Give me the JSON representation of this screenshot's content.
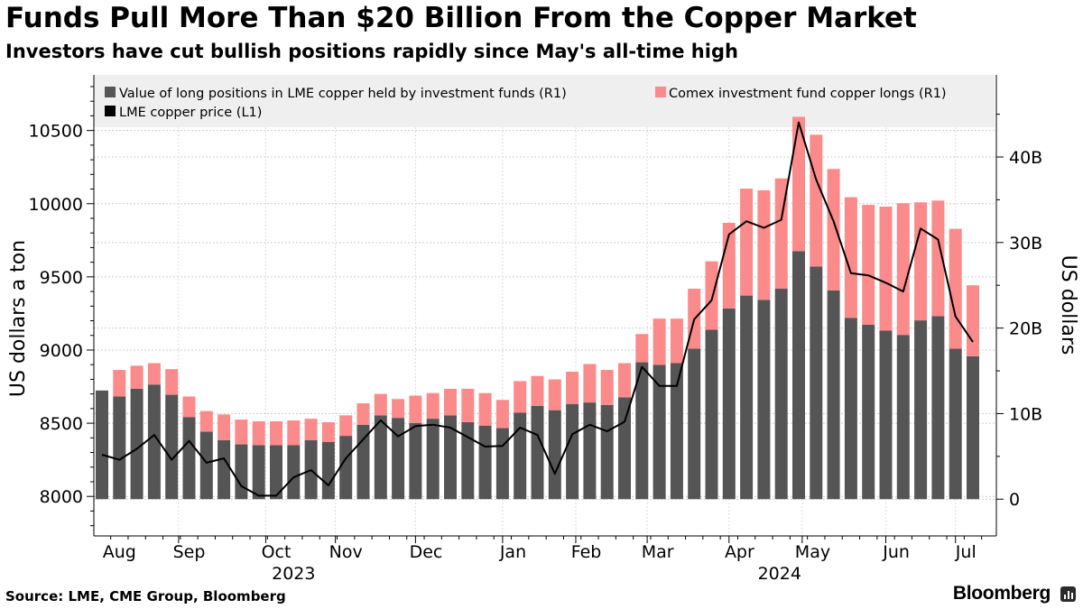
{
  "header": {
    "title": "Funds Pull More Than $20 Billion From the Copper Market",
    "subtitle": "Investors have cut bullish positions rapidly since May's all-time high"
  },
  "footer": {
    "source": "Source: LME, CME Group, Bloomberg",
    "brand": "Bloomberg"
  },
  "colors": {
    "lme_bar": "#555555",
    "comex_bar": "#fb8a8a",
    "price_line": "#000000",
    "legend_bg": "#efefef",
    "grid": "#cccccc"
  },
  "chart_data": {
    "type": "bar",
    "title": "Funds Pull More Than $20 Billion From the Copper Market",
    "ylabel_left": "US dollars a ton",
    "ylabel_right": "US dollars",
    "left_axis": {
      "min": 7730,
      "max": 10880,
      "ticks": [
        8000,
        8500,
        9000,
        9500,
        10000,
        10500
      ],
      "tick_labels": [
        "8000",
        "8500",
        "9000",
        "9500",
        "10000",
        "10500"
      ]
    },
    "right_axis": {
      "min": -4.3,
      "max": 49.6,
      "ticks": [
        0,
        10,
        20,
        30,
        40
      ],
      "tick_labels": [
        "0",
        "10B",
        "20B",
        "30B",
        "40B"
      ]
    },
    "legend": [
      {
        "key": "lme",
        "label": "Value of long positions in LME copper held by investment funds  (R1)"
      },
      {
        "key": "comex",
        "label": "Comex investment fund copper longs (R1)"
      },
      {
        "key": "price",
        "label": "LME copper price (L1)"
      }
    ],
    "x_labels": [
      {
        "label": "Aug",
        "week": 1
      },
      {
        "label": "Sep",
        "week": 5
      },
      {
        "label": "Oct",
        "week": 10
      },
      {
        "label": "Nov",
        "week": 14
      },
      {
        "label": "Dec",
        "week": 18.6
      },
      {
        "label": "Jan",
        "week": 23.6
      },
      {
        "label": "Feb",
        "week": 27.8
      },
      {
        "label": "Mar",
        "week": 31.9
      },
      {
        "label": "Apr",
        "week": 36.6
      },
      {
        "label": "May",
        "week": 40.8
      },
      {
        "label": "Jun",
        "week": 45.6
      },
      {
        "label": "Jul",
        "week": 49.6
      }
    ],
    "year_labels": [
      {
        "label": "2023",
        "week": 11
      },
      {
        "label": "2024",
        "week": 38.9
      }
    ],
    "series": [
      {
        "name": "Value of long positions in LME copper held by investment funds (R1)",
        "axis": "right",
        "unit": "billion USD",
        "values": [
          12.7,
          12.0,
          12.9,
          13.4,
          12.2,
          9.6,
          7.9,
          6.9,
          6.4,
          6.3,
          6.3,
          6.3,
          6.9,
          6.7,
          7.4,
          8.7,
          9.8,
          9.5,
          8.9,
          9.4,
          9.8,
          9.0,
          8.6,
          8.3,
          10.1,
          10.9,
          10.4,
          11.1,
          11.3,
          11.0,
          11.9,
          16.0,
          15.7,
          15.9,
          17.6,
          19.8,
          22.3,
          23.8,
          23.3,
          24.6,
          29.0,
          27.2,
          24.4,
          21.2,
          20.4,
          19.7,
          19.2,
          20.9,
          21.4,
          17.6,
          16.7
        ]
      },
      {
        "name": "Comex investment fund copper longs (R1)",
        "axis": "right",
        "unit": "billion USD",
        "values": [
          0,
          3.1,
          2.7,
          2.5,
          3.0,
          2.4,
          2.4,
          3.0,
          2.9,
          2.8,
          2.8,
          2.9,
          2.5,
          2.3,
          2.4,
          2.5,
          2.5,
          2.2,
          3.2,
          3.0,
          3.1,
          3.9,
          3.8,
          3.3,
          3.7,
          3.5,
          3.6,
          3.8,
          4.5,
          4.1,
          4.0,
          3.3,
          5.4,
          5.2,
          7.0,
          8.0,
          10.0,
          12.5,
          12.8,
          12.9,
          15.7,
          15.4,
          14.2,
          14.1,
          14.0,
          14.5,
          15.4,
          13.8,
          13.5,
          14.0,
          8.3
        ]
      },
      {
        "name": "LME copper price (L1)",
        "axis": "left",
        "unit": "USD per ton",
        "values": [
          8285,
          8250,
          8325,
          8420,
          8250,
          8380,
          8230,
          8260,
          8070,
          8005,
          8005,
          8130,
          8180,
          8075,
          8260,
          8390,
          8520,
          8410,
          8480,
          8490,
          8470,
          8405,
          8340,
          8345,
          8470,
          8420,
          8155,
          8425,
          8490,
          8445,
          8510,
          8885,
          8755,
          8755,
          9210,
          9340,
          9790,
          9880,
          9835,
          9890,
          10555,
          10165,
          9880,
          9525,
          9510,
          9460,
          9400,
          9830,
          9755,
          9230,
          9055
        ]
      }
    ]
  }
}
